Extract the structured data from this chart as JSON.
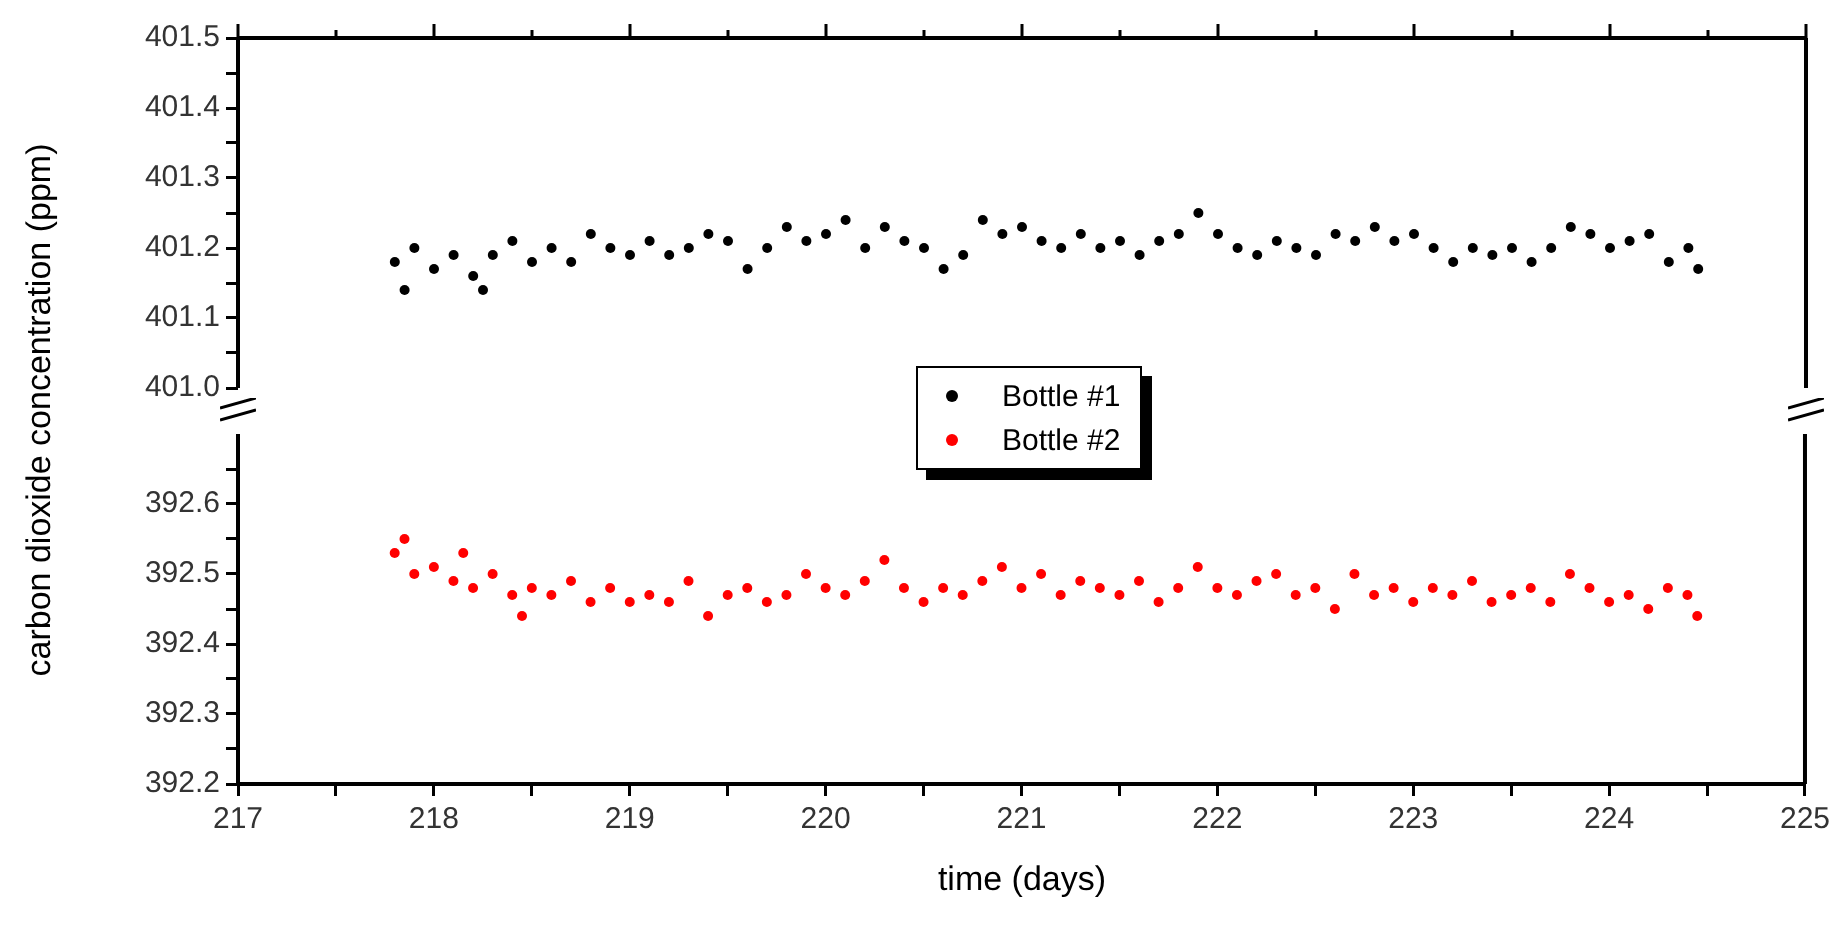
{
  "chart_data": [
    {
      "type": "scatter",
      "ylabel": "carbon dioxide concentration (ppm)",
      "legend": "center",
      "marker": "circle",
      "tick_labels": "y",
      "xlim": [
        217,
        225
      ],
      "xticks": [
        217,
        {
          "value": 217.5,
          "label": null
        },
        218,
        {
          "value": 218.5,
          "label": null
        },
        219,
        {
          "value": 219.5,
          "label": null
        },
        220,
        {
          "value": 220.5,
          "label": null
        },
        221,
        {
          "value": 221.5,
          "label": null
        },
        222,
        {
          "value": 222.5,
          "label": null
        },
        223,
        {
          "value": 223.5,
          "label": null
        },
        224,
        {
          "value": 224.5,
          "label": null
        },
        225
      ],
      "ylim": [
        401.0,
        401.5
      ],
      "yticks": [
        {
          "value": 401.0,
          "label": "401.0"
        },
        {
          "value": 401.05,
          "label": null
        },
        401.1,
        {
          "value": 401.15,
          "label": null
        },
        401.2,
        {
          "value": 401.25,
          "label": null
        },
        401.3,
        {
          "value": 401.35,
          "label": null
        },
        401.4,
        {
          "value": 401.45,
          "label": null
        },
        401.5
      ],
      "series": [
        {
          "name": "Bottle #1",
          "color": "#000000",
          "x": [
            217.8,
            217.85,
            217.9,
            218.0,
            218.1,
            218.2,
            218.25,
            218.3,
            218.4,
            218.5,
            218.6,
            218.7,
            218.8,
            218.9,
            219.0,
            219.1,
            219.2,
            219.3,
            219.4,
            219.5,
            219.6,
            219.7,
            219.8,
            219.9,
            220.0,
            220.1,
            220.2,
            220.3,
            220.4,
            220.5,
            220.6,
            220.7,
            220.8,
            220.9,
            221.0,
            221.1,
            221.2,
            221.3,
            221.4,
            221.5,
            221.6,
            221.7,
            221.8,
            221.9,
            222.0,
            222.1,
            222.2,
            222.3,
            222.4,
            222.5,
            222.6,
            222.7,
            222.8,
            222.9,
            223.0,
            223.1,
            223.2,
            223.3,
            223.4,
            223.5,
            223.6,
            223.7,
            223.8,
            223.9,
            224.0,
            224.1,
            224.2,
            224.3,
            224.4,
            224.45
          ],
          "values": [
            401.18,
            401.14,
            401.2,
            401.17,
            401.19,
            401.16,
            401.14,
            401.19,
            401.21,
            401.18,
            401.2,
            401.18,
            401.22,
            401.2,
            401.19,
            401.21,
            401.19,
            401.2,
            401.22,
            401.21,
            401.17,
            401.2,
            401.23,
            401.21,
            401.22,
            401.24,
            401.2,
            401.23,
            401.21,
            401.2,
            401.17,
            401.19,
            401.24,
            401.22,
            401.23,
            401.21,
            401.2,
            401.22,
            401.2,
            401.21,
            401.19,
            401.21,
            401.22,
            401.25,
            401.22,
            401.2,
            401.19,
            401.21,
            401.2,
            401.19,
            401.22,
            401.21,
            401.23,
            401.21,
            401.22,
            401.2,
            401.18,
            401.2,
            401.19,
            401.2,
            401.18,
            401.2,
            401.23,
            401.22,
            401.2,
            401.21,
            401.22,
            401.18,
            401.2,
            401.17
          ]
        }
      ]
    },
    {
      "type": "scatter",
      "xlabel": "time (days)",
      "marker": "circle",
      "xlim": [
        217,
        225
      ],
      "xticks": [
        217,
        {
          "value": 217.5,
          "label": null
        },
        218,
        {
          "value": 218.5,
          "label": null
        },
        219,
        {
          "value": 219.5,
          "label": null
        },
        220,
        {
          "value": 220.5,
          "label": null
        },
        221,
        {
          "value": 221.5,
          "label": null
        },
        222,
        {
          "value": 222.5,
          "label": null
        },
        223,
        {
          "value": 223.5,
          "label": null
        },
        224,
        {
          "value": 224.5,
          "label": null
        },
        225
      ],
      "ylim": [
        392.2,
        392.7
      ],
      "yticks": [
        392.2,
        {
          "value": 392.25,
          "label": null
        },
        392.3,
        {
          "value": 392.35,
          "label": null
        },
        392.4,
        {
          "value": 392.45,
          "label": null
        },
        392.5,
        {
          "value": 392.55,
          "label": null
        },
        392.6,
        {
          "value": 392.65,
          "label": null
        }
      ],
      "series": [
        {
          "name": "Bottle #2",
          "color": "#ff0000",
          "x": [
            217.8,
            217.85,
            217.9,
            218.0,
            218.1,
            218.15,
            218.2,
            218.3,
            218.4,
            218.45,
            218.5,
            218.6,
            218.7,
            218.8,
            218.9,
            219.0,
            219.1,
            219.2,
            219.3,
            219.4,
            219.5,
            219.6,
            219.7,
            219.8,
            219.9,
            220.0,
            220.1,
            220.2,
            220.3,
            220.4,
            220.5,
            220.6,
            220.7,
            220.8,
            220.9,
            221.0,
            221.1,
            221.2,
            221.3,
            221.4,
            221.5,
            221.6,
            221.7,
            221.8,
            221.9,
            222.0,
            222.1,
            222.2,
            222.3,
            222.4,
            222.5,
            222.6,
            222.7,
            222.8,
            222.9,
            223.0,
            223.1,
            223.2,
            223.3,
            223.4,
            223.5,
            223.6,
            223.7,
            223.8,
            223.9,
            224.0,
            224.1,
            224.2,
            224.3,
            224.4,
            224.45
          ],
          "values": [
            392.53,
            392.55,
            392.5,
            392.51,
            392.49,
            392.53,
            392.48,
            392.5,
            392.47,
            392.44,
            392.48,
            392.47,
            392.49,
            392.46,
            392.48,
            392.46,
            392.47,
            392.46,
            392.49,
            392.44,
            392.47,
            392.48,
            392.46,
            392.47,
            392.5,
            392.48,
            392.47,
            392.49,
            392.52,
            392.48,
            392.46,
            392.48,
            392.47,
            392.49,
            392.51,
            392.48,
            392.5,
            392.47,
            392.49,
            392.48,
            392.47,
            392.49,
            392.46,
            392.48,
            392.51,
            392.48,
            392.47,
            392.49,
            392.5,
            392.47,
            392.48,
            392.45,
            392.5,
            392.47,
            392.48,
            392.46,
            392.48,
            392.47,
            392.49,
            392.46,
            392.47,
            392.48,
            392.46,
            392.5,
            392.48,
            392.46,
            392.47,
            392.45,
            392.48,
            392.47,
            392.44
          ]
        }
      ]
    }
  ]
}
